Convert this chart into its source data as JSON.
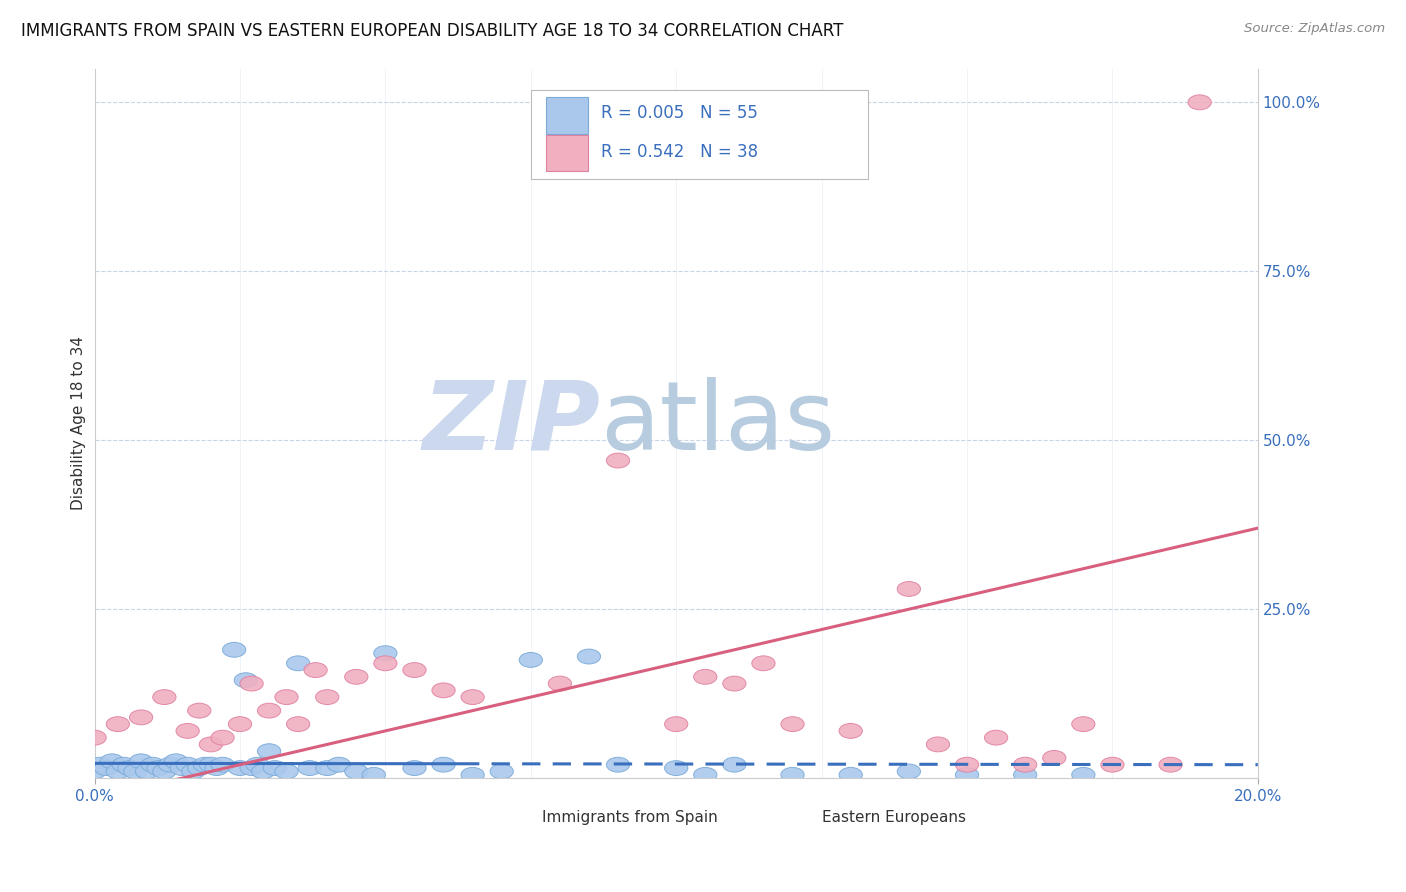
{
  "title": "IMMIGRANTS FROM SPAIN VS EASTERN EUROPEAN DISABILITY AGE 18 TO 34 CORRELATION CHART",
  "source": "Source: ZipAtlas.com",
  "ylabel": "Disability Age 18 to 34",
  "blue_color": "#3a6fbd",
  "pink_color": "#d95f7f",
  "blue_scatter_color": "#aac8ec",
  "pink_scatter_color": "#f0b0c0",
  "blue_edge_color": "#7aaad8",
  "pink_edge_color": "#e080a0",
  "watermark_zip_color": "#ccd8ee",
  "watermark_atlas_color": "#b8cce0",
  "background_color": "#ffffff",
  "grid_color": "#c8d4e8",
  "xlim": [
    0.0,
    0.2
  ],
  "ylim": [
    0.0,
    1.05
  ],
  "blue_R": 0.005,
  "blue_N": 55,
  "pink_R": 0.542,
  "pink_N": 38,
  "blue_line_intercept": 0.022,
  "blue_line_slope": -0.01,
  "pink_line_intercept": -0.03,
  "pink_line_slope": 2.0,
  "blue_scatter_x": [
    0.0,
    0.001,
    0.002,
    0.003,
    0.004,
    0.005,
    0.006,
    0.007,
    0.008,
    0.009,
    0.01,
    0.011,
    0.012,
    0.013,
    0.014,
    0.015,
    0.016,
    0.017,
    0.018,
    0.019,
    0.02,
    0.021,
    0.022,
    0.024,
    0.025,
    0.026,
    0.027,
    0.028,
    0.029,
    0.03,
    0.031,
    0.033,
    0.035,
    0.037,
    0.04,
    0.042,
    0.045,
    0.048,
    0.05,
    0.055,
    0.06,
    0.065,
    0.07,
    0.075,
    0.085,
    0.09,
    0.1,
    0.105,
    0.11,
    0.12,
    0.13,
    0.14,
    0.15,
    0.16,
    0.17
  ],
  "blue_scatter_y": [
    0.01,
    0.02,
    0.015,
    0.025,
    0.01,
    0.02,
    0.015,
    0.01,
    0.025,
    0.01,
    0.02,
    0.015,
    0.01,
    0.02,
    0.025,
    0.015,
    0.02,
    0.01,
    0.015,
    0.02,
    0.02,
    0.015,
    0.02,
    0.19,
    0.015,
    0.145,
    0.015,
    0.02,
    0.01,
    0.04,
    0.015,
    0.01,
    0.17,
    0.015,
    0.015,
    0.02,
    0.01,
    0.005,
    0.185,
    0.015,
    0.02,
    0.005,
    0.01,
    0.175,
    0.18,
    0.02,
    0.015,
    0.005,
    0.02,
    0.005,
    0.005,
    0.01,
    0.005,
    0.005,
    0.005
  ],
  "pink_scatter_x": [
    0.0,
    0.004,
    0.008,
    0.012,
    0.016,
    0.018,
    0.02,
    0.022,
    0.025,
    0.027,
    0.03,
    0.033,
    0.035,
    0.038,
    0.04,
    0.045,
    0.05,
    0.055,
    0.06,
    0.065,
    0.08,
    0.09,
    0.1,
    0.105,
    0.11,
    0.115,
    0.12,
    0.13,
    0.14,
    0.145,
    0.15,
    0.155,
    0.16,
    0.165,
    0.17,
    0.175,
    0.185,
    0.19
  ],
  "pink_scatter_y": [
    0.06,
    0.08,
    0.09,
    0.12,
    0.07,
    0.1,
    0.05,
    0.06,
    0.08,
    0.14,
    0.1,
    0.12,
    0.08,
    0.16,
    0.12,
    0.15,
    0.17,
    0.16,
    0.13,
    0.12,
    0.14,
    0.47,
    0.08,
    0.15,
    0.14,
    0.17,
    0.08,
    0.07,
    0.28,
    0.05,
    0.02,
    0.06,
    0.02,
    0.03,
    0.08,
    0.02,
    0.02,
    1.0
  ]
}
